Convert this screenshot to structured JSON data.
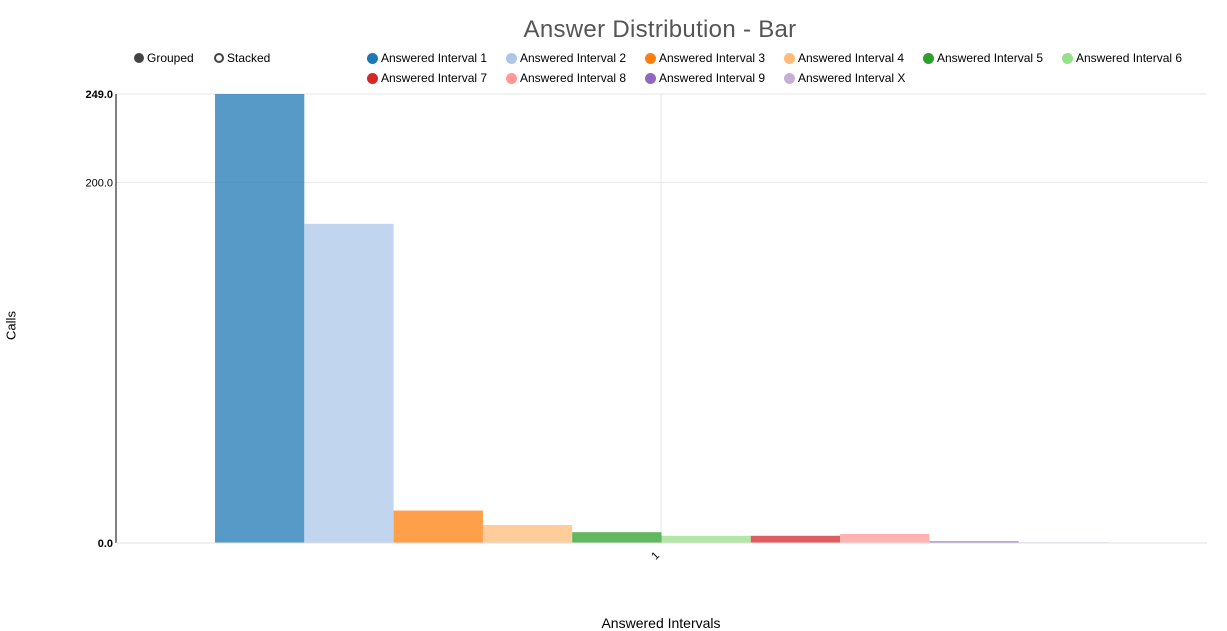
{
  "chart_data": {
    "type": "bar",
    "title": "Answer Distribution - Bar",
    "xlabel": "Answered Intervals",
    "ylabel": "Calls",
    "categories": [
      "1"
    ],
    "ylim": [
      0,
      249
    ],
    "y_ticks": [
      "0.0",
      "200.0",
      "249.0"
    ],
    "grid": true,
    "legend_position": "top",
    "mode_options": [
      "Grouped",
      "Stacked"
    ],
    "selected_mode": "Grouped",
    "series": [
      {
        "name": "Answered Interval 1",
        "values": [
          249
        ],
        "color": "#1f77b4"
      },
      {
        "name": "Answered Interval 2",
        "values": [
          177
        ],
        "color": "#aec7e8"
      },
      {
        "name": "Answered Interval 3",
        "values": [
          18
        ],
        "color": "#ff7f0e"
      },
      {
        "name": "Answered Interval 4",
        "values": [
          10
        ],
        "color": "#ffbb78"
      },
      {
        "name": "Answered Interval 5",
        "values": [
          6
        ],
        "color": "#2ca02c"
      },
      {
        "name": "Answered Interval 6",
        "values": [
          4
        ],
        "color": "#98df8a"
      },
      {
        "name": "Answered Interval 7",
        "values": [
          4
        ],
        "color": "#d62728"
      },
      {
        "name": "Answered Interval 8",
        "values": [
          5
        ],
        "color": "#ff9896"
      },
      {
        "name": "Answered Interval 9",
        "values": [
          1
        ],
        "color": "#9467bd"
      },
      {
        "name": "Answered Interval X",
        "values": [
          0.4
        ],
        "color": "#c5b0d5"
      }
    ]
  }
}
